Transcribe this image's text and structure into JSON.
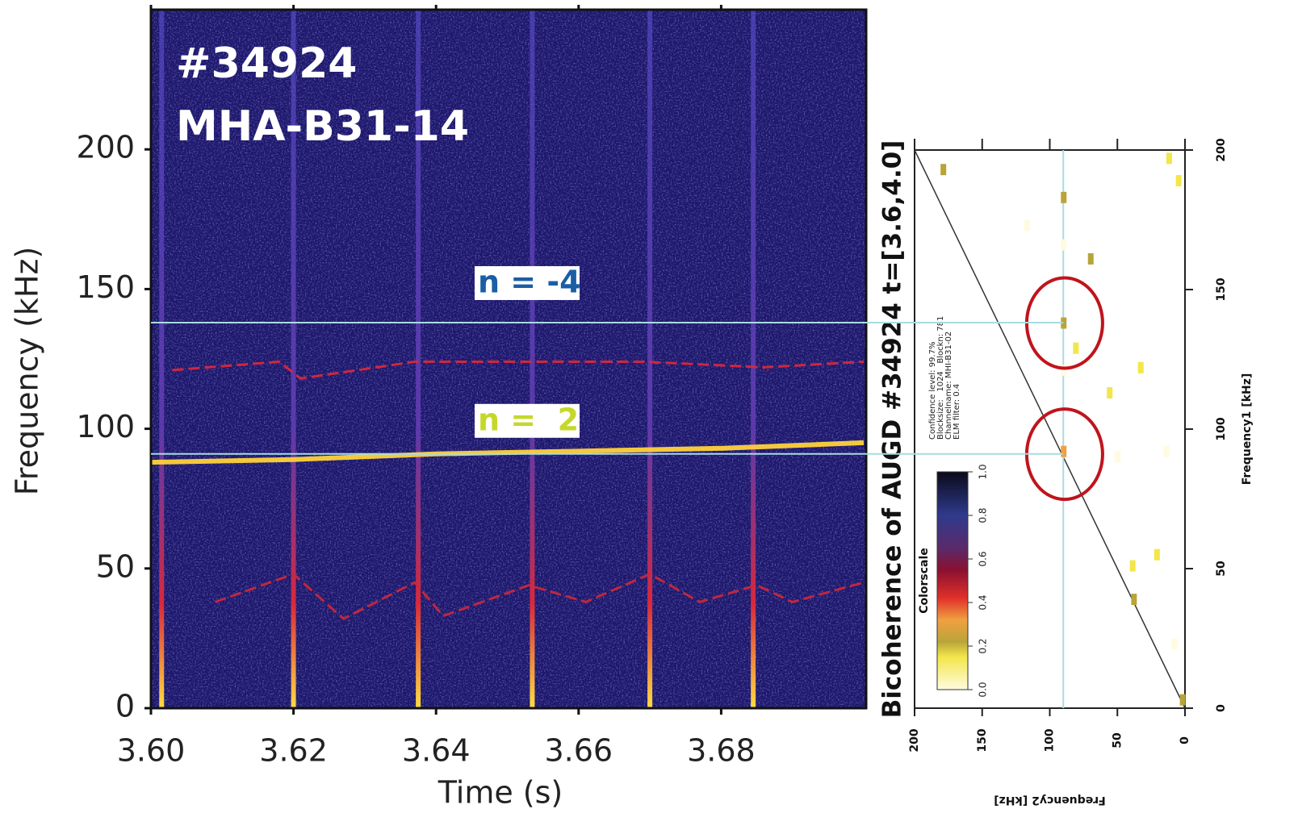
{
  "chart_data": [
    {
      "type": "spectrogram",
      "title_lines": [
        "#34924",
        "MHA-B31-14"
      ],
      "xlabel": "Time (s)",
      "ylabel": "Frequency (kHz)",
      "xlim": [
        3.6,
        3.7
      ],
      "xticks": [
        {
          "value": 3.6,
          "label": "3.60"
        },
        3.62,
        3.64,
        3.66,
        3.68
      ],
      "ylim": [
        0,
        250
      ],
      "yticks": [
        0,
        50,
        100,
        150,
        200
      ],
      "bursts": [
        3.6015,
        3.62,
        3.6375,
        3.6535,
        3.67,
        3.6845
      ],
      "traces": [
        {
          "color": "#ffd23a",
          "x": [
            3.6,
            3.62,
            3.64,
            3.66,
            3.68,
            3.7
          ],
          "values": [
            88,
            89,
            91,
            92,
            93,
            95
          ]
        },
        {
          "color": "#d8283c",
          "x": [
            3.603,
            3.618,
            3.621,
            3.637,
            3.655,
            3.669,
            3.686,
            3.7
          ],
          "values": [
            121,
            124,
            118,
            124,
            124,
            124,
            122,
            124
          ]
        },
        {
          "color": "#c8283c",
          "x": [
            3.609,
            3.62,
            3.627,
            3.637,
            3.641,
            3.653,
            3.661,
            3.67,
            3.677,
            3.685,
            3.69,
            3.7
          ],
          "values": [
            38,
            48,
            32,
            45,
            33,
            44,
            38,
            48,
            38,
            44,
            38,
            45
          ]
        }
      ],
      "modes": [
        {
          "label": "n = -4",
          "value": 138,
          "color": "#1a5ea6"
        },
        {
          "label": "n =  2",
          "value": 91,
          "color": "#c5d82a"
        }
      ]
    },
    {
      "type": "bicoherence",
      "title": "Bicoherence of AUGD #34924 t=[3.6,4.0]",
      "xlabel": "Frequency2 [kHz]",
      "ylabel": "Frequency1 [kHz]",
      "xlim": [
        200,
        0
      ],
      "ylim": [
        0,
        200
      ],
      "xticks": [
        200,
        150,
        100,
        50,
        0
      ],
      "yticks": [
        0,
        50,
        100,
        150,
        200
      ],
      "info": [
        "Confidence level: 99.7%",
        "Blocksize:   1024   Blockn: 781",
        "Channelname: MHI-B31-02",
        "ELM filter: 0.4"
      ],
      "colorscale": {
        "label": "Colorscale",
        "lim": [
          0,
          1
        ],
        "ticks": [
          {
            "value": 0,
            "label": "0.0"
          },
          0.2,
          0.4,
          0.6,
          0.8,
          {
            "value": 1,
            "label": "1.0"
          }
        ]
      },
      "guide_x": 90,
      "circles": [
        {
          "x": 89,
          "y": 138
        },
        {
          "x": 89,
          "y": 91
        }
      ],
      "points": {
        "x": [
          179,
          90,
          117,
          90,
          70,
          90,
          81,
          90,
          33,
          56,
          90,
          50,
          14,
          39,
          21,
          38,
          8,
          2,
          12,
          5
        ],
        "values": [
          193,
          183,
          173,
          166,
          161,
          138,
          129,
          121,
          122,
          113,
          92,
          90,
          92,
          51,
          55,
          39,
          23,
          3,
          197,
          189
        ],
        "intensity": [
          0.22,
          0.25,
          0.12,
          0.1,
          0.22,
          0.25,
          0.15,
          0.1,
          0.15,
          0.18,
          0.35,
          0.1,
          0.1,
          0.2,
          0.18,
          0.22,
          0.1,
          0.3,
          0.15,
          0.2
        ]
      }
    }
  ]
}
